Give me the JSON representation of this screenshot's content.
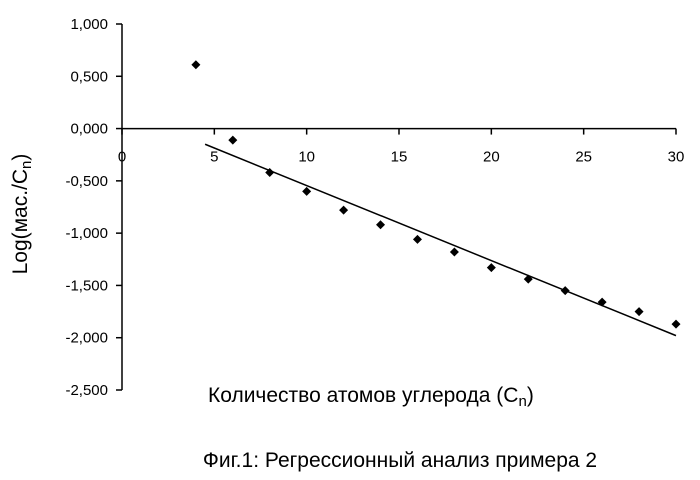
{
  "chart_data": {
    "type": "scatter",
    "xlabel": "Количество атомов углерода (",
    "xlabel_symbol": "C",
    "xlabel_subscript": "n",
    "xlabel_close": ")",
    "ylabel": "Log(мас./C",
    "ylabel_subscript": "n",
    "ylabel_close": ")",
    "caption": "Фиг.1: Регрессионный анализ примера 2",
    "xlim": [
      0,
      30
    ],
    "ylim": [
      -2.5,
      1.0
    ],
    "x_ticks": [
      0,
      5,
      10,
      15,
      20,
      25,
      30
    ],
    "x_tick_labels": [
      "0",
      "5",
      "10",
      "15",
      "20",
      "25",
      "30"
    ],
    "y_ticks": [
      1.0,
      0.5,
      0.0,
      -0.5,
      -1.0,
      -1.5,
      -2.0,
      -2.5
    ],
    "y_tick_labels": [
      "1,000",
      "0,500",
      "0,000",
      "-0,500",
      "-1,000",
      "-1,500",
      "-2,000",
      "-2,500"
    ],
    "grid": false,
    "legend": "none",
    "series": [
      {
        "points": [
          {
            "x": 4,
            "y": 0.61
          },
          {
            "x": 6,
            "y": -0.11
          },
          {
            "x": 8,
            "y": -0.42
          },
          {
            "x": 10,
            "y": -0.6
          },
          {
            "x": 12,
            "y": -0.78
          },
          {
            "x": 14,
            "y": -0.92
          },
          {
            "x": 16,
            "y": -1.06
          },
          {
            "x": 18,
            "y": -1.18
          },
          {
            "x": 20,
            "y": -1.33
          },
          {
            "x": 22,
            "y": -1.44
          },
          {
            "x": 24,
            "y": -1.55
          },
          {
            "x": 26,
            "y": -1.66
          },
          {
            "x": 28,
            "y": -1.75
          },
          {
            "x": 30,
            "y": -1.87
          }
        ],
        "marker": "diamond",
        "color": "#000000"
      }
    ],
    "trendline": {
      "x_start": 4.5,
      "y_start": -0.15,
      "x_end": 30,
      "y_end": -1.98,
      "color": "#000000"
    }
  }
}
